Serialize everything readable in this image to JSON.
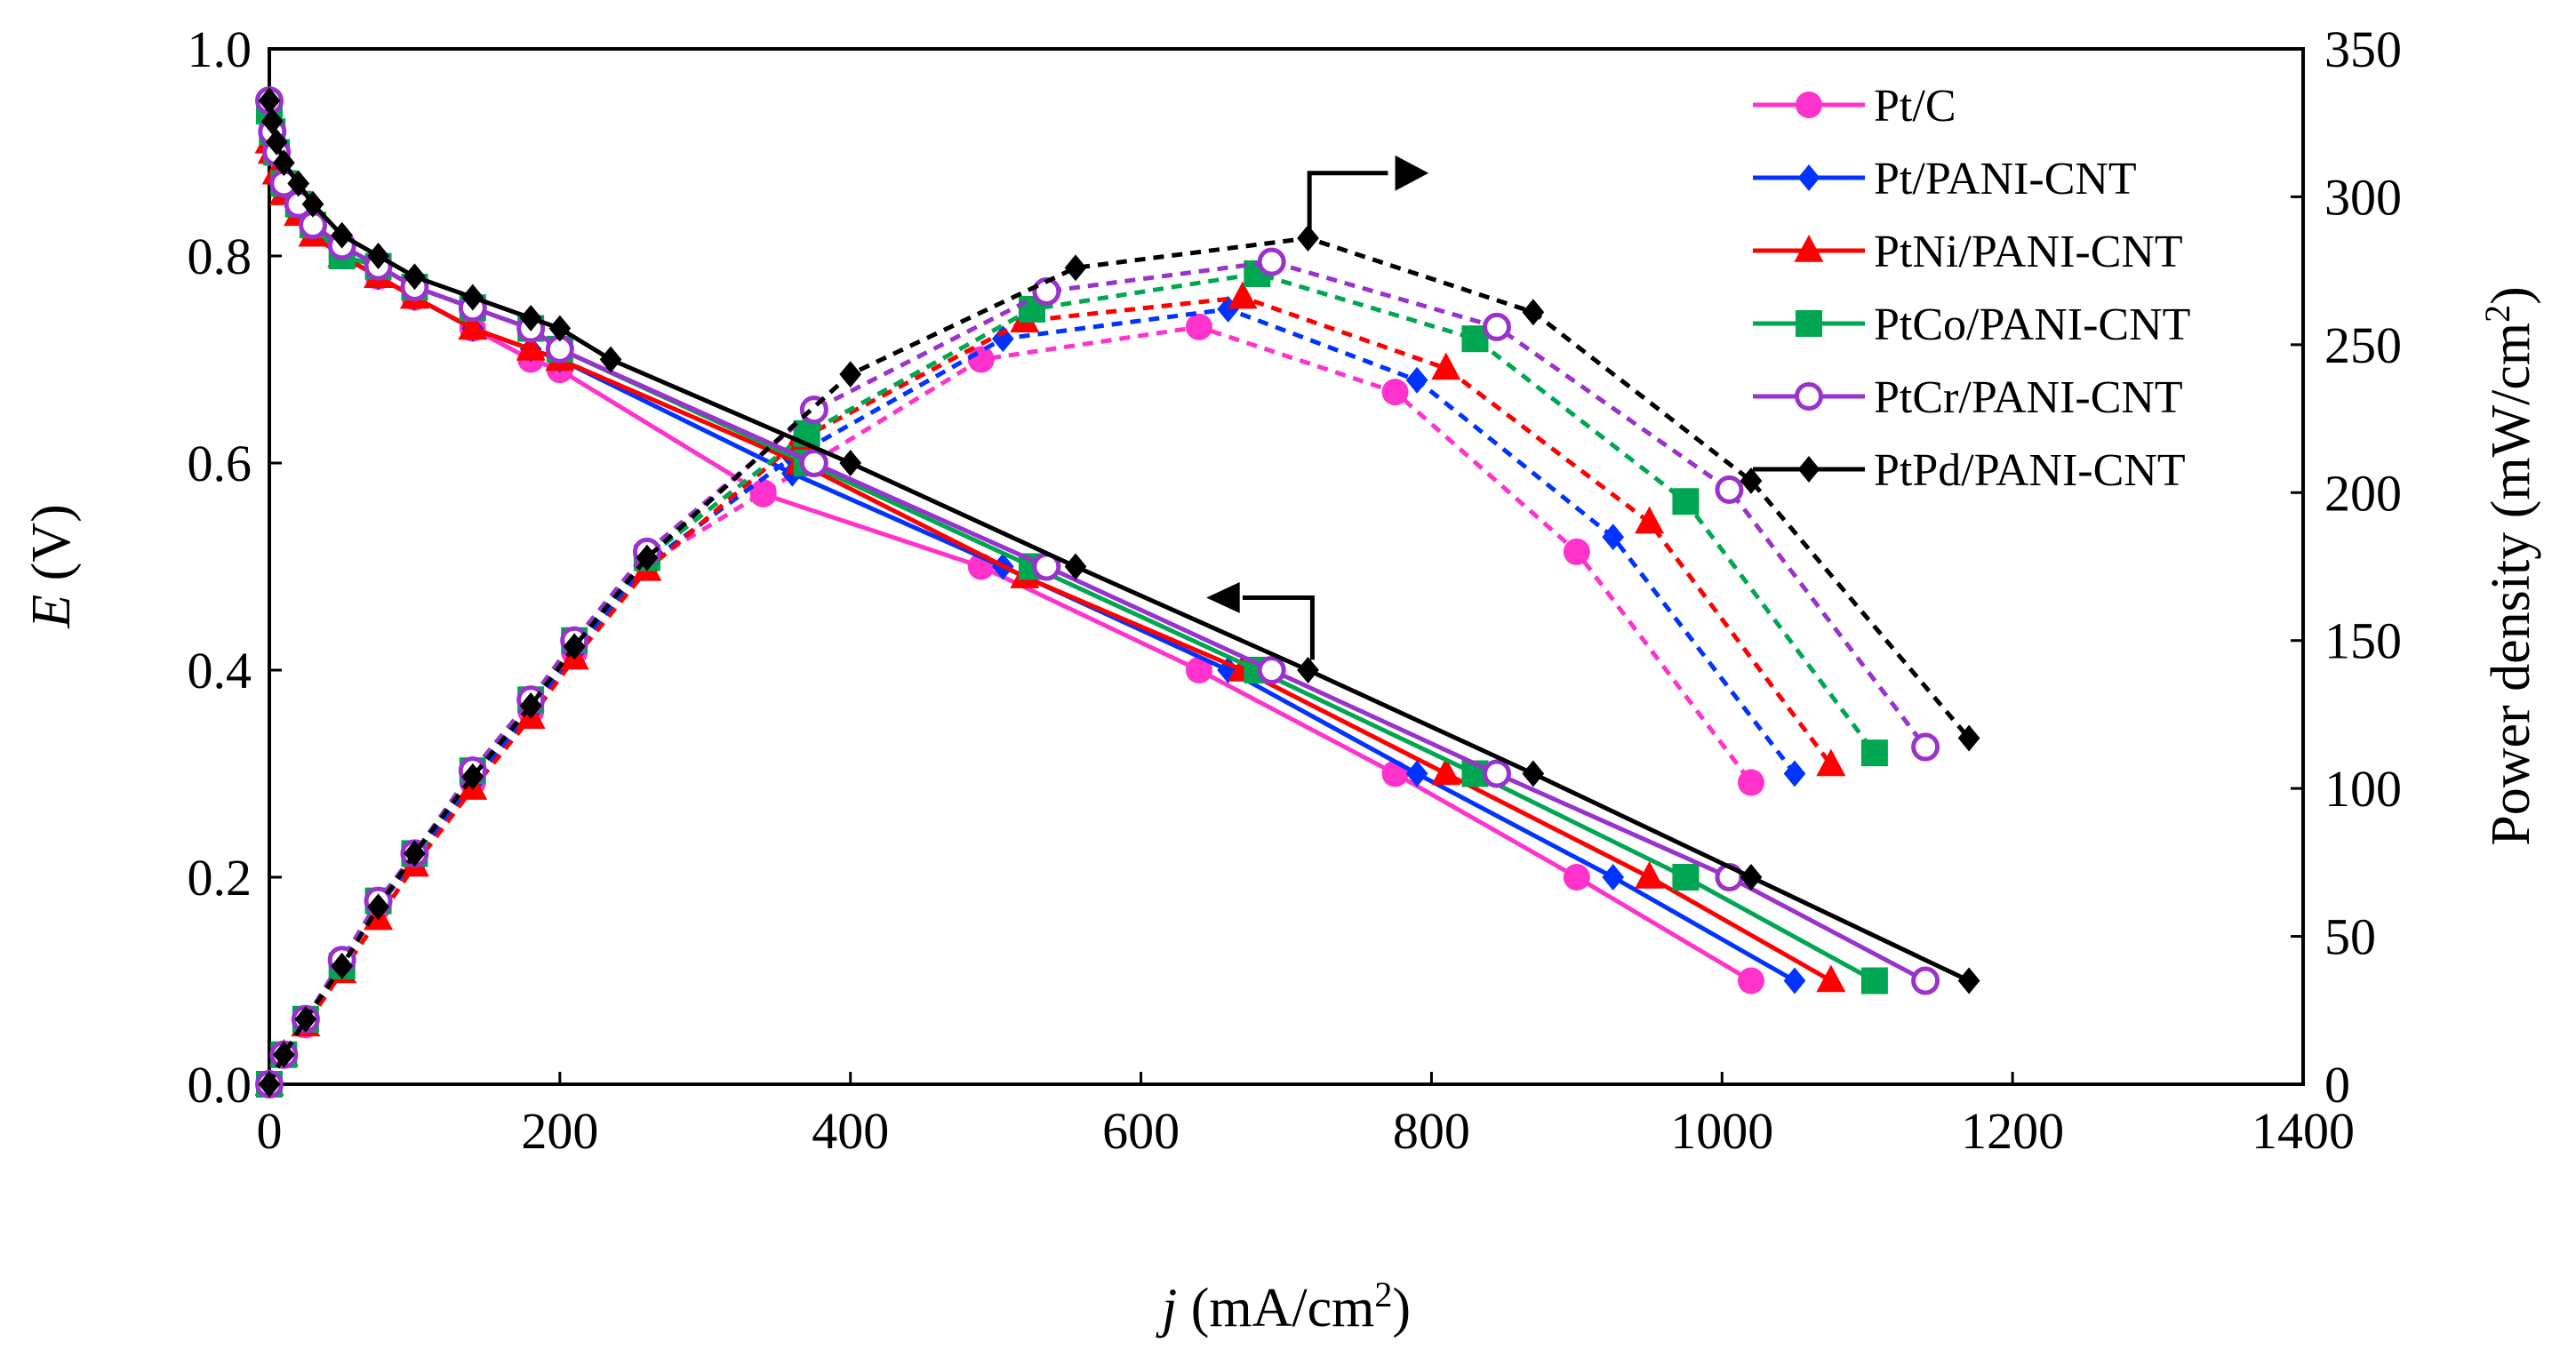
{
  "chart_data": {
    "type": "line",
    "title": "",
    "xlabel": {
      "var": "j",
      "unit": " (mA/cm",
      "sup": "2",
      "close": ")"
    },
    "ylabel_left": {
      "var": "E",
      "unit": " (V)"
    },
    "ylabel_right": {
      "text": "Power density (mW/cm",
      "sup": "2",
      "close": ")"
    },
    "xlim": [
      0,
      1400
    ],
    "ylim_left": [
      0,
      1.0
    ],
    "ylim_right": [
      0,
      350
    ],
    "x_ticks": [
      "0",
      "200",
      "400",
      "600",
      "800",
      "1000",
      "1200",
      "1400"
    ],
    "y_left_ticks": [
      "0.0",
      "0.2",
      "0.4",
      "0.6",
      "0.8",
      "1.0"
    ],
    "y_right_ticks": [
      "0",
      "50",
      "100",
      "150",
      "200",
      "250",
      "300",
      "350"
    ],
    "legend_position": "top-right",
    "series": [
      {
        "name": "Pt/C",
        "color": "#ff33cc",
        "marker": "circle",
        "polarization": {
          "x": [
            0,
            2,
            5,
            10,
            20,
            30,
            50,
            75,
            100,
            140,
            180,
            200,
            340,
            490,
            640,
            775,
            900,
            1020
          ],
          "y": [
            0.94,
            0.92,
            0.9,
            0.87,
            0.85,
            0.83,
            0.8,
            0.78,
            0.76,
            0.73,
            0.7,
            0.69,
            0.57,
            0.5,
            0.4,
            0.3,
            0.2,
            0.1
          ]
        },
        "power": {
          "x": [
            0,
            10,
            25,
            50,
            75,
            100,
            140,
            180,
            210,
            260,
            340,
            490,
            640,
            775,
            900,
            1020
          ],
          "y": [
            0,
            10,
            20,
            40,
            60,
            76,
            102,
            126,
            146,
            176,
            200,
            245,
            256,
            234,
            180,
            102
          ]
        }
      },
      {
        "name": "Pt/PANI-CNT",
        "color": "#0033ff",
        "marker": "diamond",
        "polarization": {
          "x": [
            0,
            2,
            5,
            10,
            20,
            30,
            50,
            75,
            100,
            140,
            180,
            200,
            360,
            505,
            660,
            790,
            925,
            1050
          ],
          "y": [
            0.95,
            0.92,
            0.9,
            0.87,
            0.85,
            0.83,
            0.8,
            0.78,
            0.76,
            0.73,
            0.71,
            0.7,
            0.59,
            0.5,
            0.4,
            0.3,
            0.2,
            0.1
          ]
        },
        "power": {
          "x": [
            0,
            10,
            25,
            50,
            75,
            100,
            140,
            180,
            210,
            260,
            360,
            505,
            660,
            790,
            925,
            1050
          ],
          "y": [
            0,
            10,
            22,
            40,
            60,
            76,
            102,
            126,
            146,
            176,
            212,
            252,
            262,
            238,
            185,
            105
          ]
        }
      },
      {
        "name": "PtNi/PANI-CNT",
        "color": "#ff0000",
        "marker": "triangle",
        "polarization": {
          "x": [
            0,
            2,
            5,
            10,
            20,
            30,
            50,
            75,
            100,
            140,
            180,
            200,
            365,
            520,
            670,
            810,
            950,
            1075
          ],
          "y": [
            0.91,
            0.9,
            0.88,
            0.86,
            0.84,
            0.82,
            0.8,
            0.78,
            0.76,
            0.73,
            0.71,
            0.7,
            0.6,
            0.49,
            0.4,
            0.3,
            0.2,
            0.1
          ]
        },
        "power": {
          "x": [
            0,
            10,
            25,
            50,
            75,
            100,
            140,
            180,
            210,
            260,
            365,
            520,
            670,
            810,
            950,
            1075
          ],
          "y": [
            0,
            10,
            20,
            38,
            56,
            74,
            100,
            124,
            144,
            174,
            218,
            258,
            266,
            242,
            190,
            108
          ]
        }
      },
      {
        "name": "PtCo/PANI-CNT",
        "color": "#00a651",
        "marker": "square",
        "polarization": {
          "x": [
            0,
            2,
            5,
            10,
            20,
            30,
            50,
            75,
            100,
            140,
            180,
            200,
            370,
            525,
            680,
            830,
            975,
            1105
          ],
          "y": [
            0.94,
            0.92,
            0.9,
            0.87,
            0.85,
            0.83,
            0.8,
            0.79,
            0.77,
            0.75,
            0.73,
            0.71,
            0.6,
            0.5,
            0.4,
            0.3,
            0.2,
            0.1
          ]
        },
        "power": {
          "x": [
            0,
            10,
            25,
            50,
            75,
            100,
            140,
            180,
            210,
            260,
            370,
            525,
            680,
            830,
            975,
            1105
          ],
          "y": [
            0,
            10,
            22,
            40,
            62,
            78,
            106,
            130,
            150,
            178,
            220,
            262,
            274,
            252,
            197,
            112
          ]
        }
      },
      {
        "name": "PtCr/PANI-CNT",
        "color": "#9933cc",
        "marker": "open-circle",
        "polarization": {
          "x": [
            0,
            2,
            5,
            10,
            20,
            30,
            50,
            75,
            100,
            140,
            180,
            200,
            375,
            535,
            690,
            845,
            1005,
            1140
          ],
          "y": [
            0.95,
            0.92,
            0.9,
            0.87,
            0.85,
            0.83,
            0.81,
            0.79,
            0.77,
            0.75,
            0.73,
            0.71,
            0.6,
            0.5,
            0.4,
            0.3,
            0.2,
            0.1
          ]
        },
        "power": {
          "x": [
            0,
            10,
            25,
            50,
            75,
            100,
            140,
            180,
            210,
            260,
            375,
            535,
            690,
            845,
            1005,
            1140
          ],
          "y": [
            0,
            10,
            22,
            42,
            62,
            78,
            106,
            130,
            150,
            180,
            228,
            268,
            278,
            256,
            201,
            114
          ]
        }
      },
      {
        "name": "PtPd/PANI-CNT",
        "color": "#000000",
        "marker": "diamond",
        "polarization": {
          "x": [
            0,
            2,
            5,
            10,
            20,
            30,
            50,
            75,
            100,
            140,
            180,
            200,
            235,
            400,
            555,
            715,
            870,
            1020,
            1170
          ],
          "y": [
            0.95,
            0.93,
            0.91,
            0.89,
            0.87,
            0.85,
            0.82,
            0.8,
            0.78,
            0.76,
            0.74,
            0.73,
            0.7,
            0.6,
            0.5,
            0.4,
            0.3,
            0.2,
            0.1
          ]
        },
        "power": {
          "x": [
            0,
            10,
            25,
            50,
            75,
            100,
            140,
            180,
            210,
            260,
            400,
            555,
            715,
            870,
            1020,
            1170
          ],
          "y": [
            0,
            10,
            22,
            40,
            60,
            78,
            104,
            128,
            148,
            178,
            240,
            276,
            286,
            261,
            204,
            117
          ]
        }
      }
    ],
    "annotations": [
      {
        "label": "arrow-right-power-axis",
        "points_to": "right y-axis (power density curves)"
      },
      {
        "label": "arrow-left-potential-axis",
        "points_to": "left y-axis (polarization curves)"
      }
    ]
  }
}
